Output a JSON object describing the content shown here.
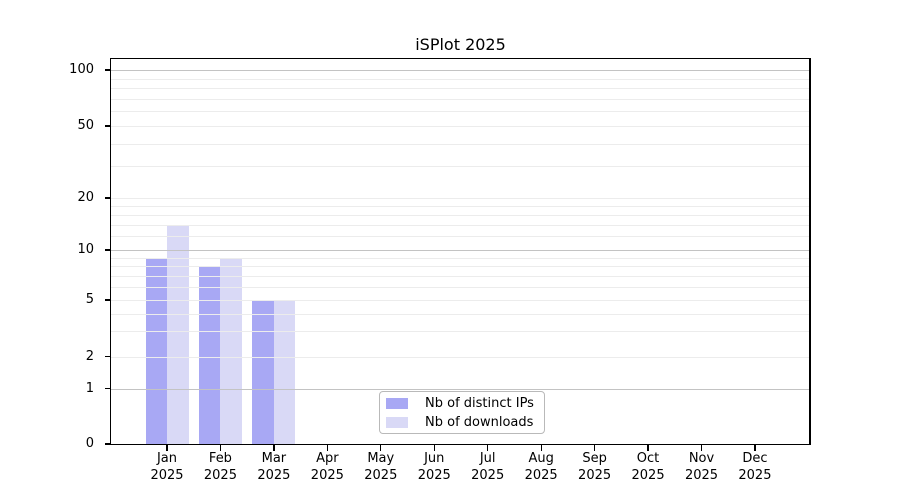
{
  "chart_data": {
    "type": "bar",
    "title": "iSPlot 2025",
    "categories": [
      "Jan",
      "Feb",
      "Mar",
      "Apr",
      "May",
      "Jun",
      "Jul",
      "Aug",
      "Sep",
      "Oct",
      "Nov",
      "Dec"
    ],
    "category_sub_label": "2025",
    "series": [
      {
        "name": "Nb of distinct IPs",
        "color": "#a8a8f4",
        "values": [
          9,
          8,
          5,
          0,
          0,
          0,
          0,
          0,
          0,
          0,
          0,
          0
        ]
      },
      {
        "name": "Nb of downloads",
        "color": "#d9d9f6",
        "values": [
          14,
          9,
          5,
          0,
          0,
          0,
          0,
          0,
          0,
          0,
          0,
          0
        ]
      }
    ],
    "xlabel": "",
    "ylabel": "",
    "y_axis": {
      "scale": "log-like (linear 0-1, logarithmic above)",
      "range": [
        0,
        100
      ],
      "labeled_ticks": [
        0,
        1,
        2,
        5,
        10,
        20,
        50,
        100
      ],
      "decade_gridlines": [
        1,
        10,
        100
      ],
      "minor_gridlines": [
        2,
        3,
        4,
        5,
        6,
        7,
        8,
        9,
        12,
        14,
        16,
        18,
        20,
        30,
        40,
        50,
        60,
        70,
        80,
        90
      ]
    },
    "grid": true,
    "legend_position": "lower center"
  },
  "colors": {
    "background": "#ffffff",
    "grid_major": "#c3c3c3",
    "grid_minor": "#ececec",
    "axis": "#000000",
    "legend_border": "#b9b9b9"
  }
}
